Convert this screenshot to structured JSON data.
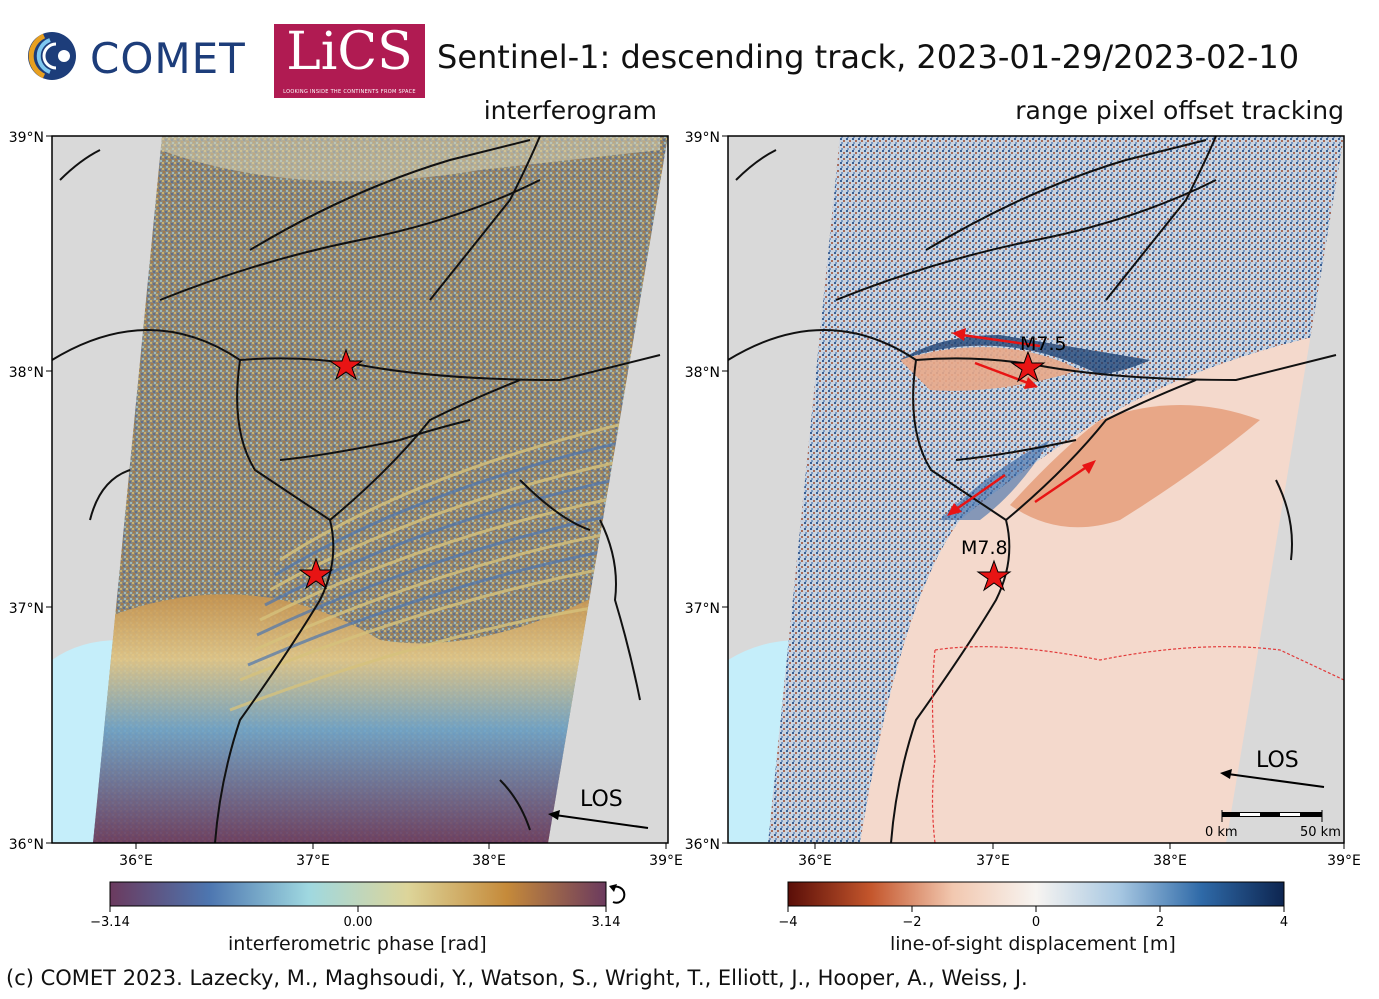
{
  "header": {
    "comet_logo_text": "COMET",
    "lics_logo_text": "LiCS",
    "lics_tagline": "LOOKING INSIDE THE CONTINENTS FROM SPACE",
    "title": "Sentinel-1: descending track, 2023-01-29/2023-02-10"
  },
  "left_panel": {
    "title": "interferogram",
    "y_ticks": [
      "39°N",
      "38°N",
      "37°N",
      "36°N"
    ],
    "x_ticks": [
      "36°E",
      "37°E",
      "38°E",
      "39°E"
    ],
    "los_label": "LOS",
    "colorbar": {
      "ticks": [
        "−3.14",
        "0.00",
        "3.14"
      ],
      "label": "interferometric phase [rad]",
      "colors": [
        "#6b3a5e",
        "#4d76b0",
        "#9fd8e0",
        "#ddd59a",
        "#c58a3a",
        "#6b3a5e"
      ]
    }
  },
  "right_panel": {
    "title": "range pixel offset tracking",
    "y_ticks": [
      "39°N",
      "38°N",
      "37°N",
      "36°N"
    ],
    "x_ticks": [
      "36°E",
      "37°E",
      "38°E",
      "39°E"
    ],
    "events": [
      {
        "label": "M7.5",
        "lon": 37.2,
        "lat": 38.03
      },
      {
        "label": "M7.8",
        "lon": 37.02,
        "lat": 37.15
      }
    ],
    "los_label": "LOS",
    "scalebar": {
      "start": "0 km",
      "end": "50 km"
    },
    "colorbar": {
      "ticks": [
        "−4",
        "−2",
        "0",
        "2",
        "4"
      ],
      "label": "line-of-sight displacement [m]",
      "colors": [
        "#5a0e08",
        "#c4562c",
        "#f2c8b0",
        "#f7f4f1",
        "#a8c8e2",
        "#2f6aa8",
        "#0d2550"
      ]
    }
  },
  "footer": {
    "copyright": "(c) COMET 2023. Lazecky, M., Maghsoudi, Y., Watson, S., Wright, T., Elliott, J., Hooper, A., Weiss, J."
  },
  "colors": {
    "sea": "#c5eefa",
    "land_outside": "#d9d9d9",
    "star": "#e81414",
    "fault": "#111111"
  }
}
